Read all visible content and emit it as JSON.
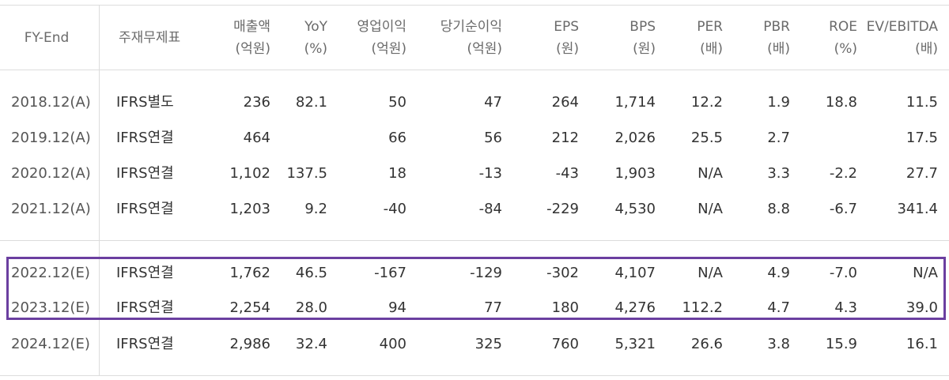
{
  "header": {
    "fy": "FY-End",
    "report": "주재무제표",
    "sales": [
      "매출액",
      "(억원)"
    ],
    "yoy": [
      "YoY",
      "(%)"
    ],
    "op_income": [
      "영업이익",
      "(억원)"
    ],
    "net_income": [
      "당기순이익",
      "(억원)"
    ],
    "eps": [
      "EPS",
      "(원)"
    ],
    "bps": [
      "BPS",
      "(원)"
    ],
    "per": [
      "PER",
      "(배)"
    ],
    "pbr": [
      "PBR",
      "(배)"
    ],
    "roe": [
      "ROE",
      "(%)"
    ],
    "ev_ebitda": [
      "EV/EBITDA",
      "(배)"
    ]
  },
  "rows": [
    {
      "fy": "2018.12(A)",
      "report": "IFRS별도",
      "sales": "236",
      "yoy": "82.1",
      "op": "50",
      "net": "47",
      "eps": "264",
      "bps": "1,714",
      "per": "12.2",
      "pbr": "1.9",
      "roe": "18.8",
      "ev": "11.5"
    },
    {
      "fy": "2019.12(A)",
      "report": "IFRS연결",
      "sales": "464",
      "yoy": "",
      "op": "66",
      "net": "56",
      "eps": "212",
      "bps": "2,026",
      "per": "25.5",
      "pbr": "2.7",
      "roe": "",
      "ev": "17.5"
    },
    {
      "fy": "2020.12(A)",
      "report": "IFRS연결",
      "sales": "1,102",
      "yoy": "137.5",
      "op": "18",
      "net": "-13",
      "eps": "-43",
      "bps": "1,903",
      "per": "N/A",
      "pbr": "3.3",
      "roe": "-2.2",
      "ev": "27.7"
    },
    {
      "fy": "2021.12(A)",
      "report": "IFRS연결",
      "sales": "1,203",
      "yoy": "9.2",
      "op": "-40",
      "net": "-84",
      "eps": "-229",
      "bps": "4,530",
      "per": "N/A",
      "pbr": "8.8",
      "roe": "-6.7",
      "ev": "341.4"
    },
    {
      "fy": "2022.12(E)",
      "report": "IFRS연결",
      "sales": "1,762",
      "yoy": "46.5",
      "op": "-167",
      "net": "-129",
      "eps": "-302",
      "bps": "4,107",
      "per": "N/A",
      "pbr": "4.9",
      "roe": "-7.0",
      "ev": "N/A"
    },
    {
      "fy": "2023.12(E)",
      "report": "IFRS연결",
      "sales": "2,254",
      "yoy": "28.0",
      "op": "94",
      "net": "77",
      "eps": "180",
      "bps": "4,276",
      "per": "112.2",
      "pbr": "4.7",
      "roe": "4.3",
      "ev": "39.0"
    },
    {
      "fy": "2024.12(E)",
      "report": "IFRS연결",
      "sales": "2,986",
      "yoy": "32.4",
      "op": "400",
      "net": "325",
      "eps": "760",
      "bps": "5,321",
      "per": "26.6",
      "pbr": "3.8",
      "roe": "15.9",
      "ev": "16.1"
    }
  ],
  "highlight_color": "#6b3fa0"
}
